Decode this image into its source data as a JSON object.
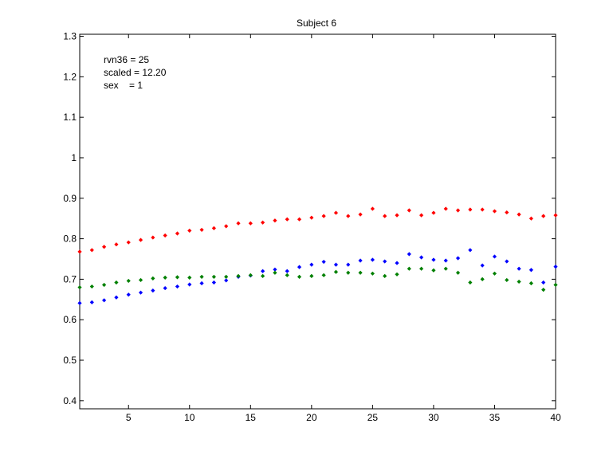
{
  "chart_data": {
    "type": "scatter",
    "title": "Subject 6",
    "xlabel": "",
    "ylabel": "",
    "xlim": [
      1,
      40
    ],
    "ylim": [
      0.38,
      1.305
    ],
    "xticks": [
      5,
      10,
      15,
      20,
      25,
      30,
      35,
      40
    ],
    "yticks": [
      0.4,
      0.5,
      0.6,
      0.7,
      0.8,
      0.9,
      1.0,
      1.1,
      1.2,
      1.3
    ],
    "xtick_labels": [
      "5",
      "10",
      "15",
      "20",
      "25",
      "30",
      "35",
      "40"
    ],
    "ytick_labels": [
      "0.4",
      "0.5",
      "0.6",
      "0.7",
      "0.8",
      "0.9",
      "1",
      "1.1",
      "1.2",
      "1.3"
    ],
    "grid": false,
    "annotations": [
      "rvn36 = 25",
      "scaled = 12.20",
      "sex    = 1"
    ],
    "x": [
      1,
      2,
      3,
      4,
      5,
      6,
      7,
      8,
      9,
      10,
      11,
      12,
      13,
      14,
      15,
      16,
      17,
      18,
      19,
      20,
      21,
      22,
      23,
      24,
      25,
      26,
      27,
      28,
      29,
      30,
      31,
      32,
      33,
      34,
      35,
      36,
      37,
      38,
      39,
      40
    ],
    "series": [
      {
        "color": "#ff0000",
        "values": [
          0.768,
          0.772,
          0.78,
          0.786,
          0.791,
          0.797,
          0.803,
          0.808,
          0.813,
          0.82,
          0.822,
          0.826,
          0.831,
          0.838,
          0.838,
          0.84,
          0.845,
          0.848,
          0.848,
          0.852,
          0.856,
          0.864,
          0.856,
          0.86,
          0.874,
          0.856,
          0.858,
          0.87,
          0.858,
          0.864,
          0.874,
          0.87,
          0.872,
          0.872,
          0.868,
          0.865,
          0.86,
          0.85,
          0.856,
          0.858
        ]
      },
      {
        "color": "#0000ff",
        "values": [
          0.641,
          0.643,
          0.648,
          0.655,
          0.662,
          0.667,
          0.672,
          0.678,
          0.682,
          0.687,
          0.69,
          0.692,
          0.697,
          0.706,
          0.709,
          0.72,
          0.724,
          0.72,
          0.73,
          0.736,
          0.743,
          0.736,
          0.736,
          0.746,
          0.748,
          0.744,
          0.74,
          0.762,
          0.754,
          0.748,
          0.746,
          0.752,
          0.772,
          0.734,
          0.756,
          0.744,
          0.726,
          0.723,
          0.692,
          0.731
        ]
      },
      {
        "color": "#008000",
        "values": [
          0.68,
          0.682,
          0.686,
          0.692,
          0.696,
          0.698,
          0.702,
          0.704,
          0.705,
          0.704,
          0.706,
          0.706,
          0.706,
          0.708,
          0.71,
          0.708,
          0.716,
          0.71,
          0.706,
          0.708,
          0.71,
          0.718,
          0.716,
          0.716,
          0.714,
          0.708,
          0.712,
          0.726,
          0.726,
          0.722,
          0.726,
          0.716,
          0.692,
          0.7,
          0.714,
          0.698,
          0.694,
          0.69,
          0.674,
          0.686
        ]
      }
    ]
  }
}
